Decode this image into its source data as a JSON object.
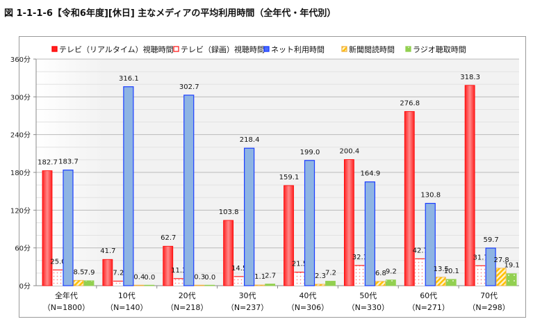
{
  "title": "図 1-1-1-6【令和6年度][休日] 主なメディアの平均利用時間（全年代・年代別）",
  "chart_data": {
    "type": "bar",
    "title": "図 1-1-1-6【令和6年度][休日] 主なメディアの平均利用時間（全年代・年代別）",
    "ylabel": "",
    "xlabel": "",
    "ylim": [
      0,
      360
    ],
    "yticks": [
      0,
      60,
      120,
      180,
      240,
      300,
      360
    ],
    "ytick_labels": [
      "0分",
      "60分",
      "120分",
      "180分",
      "240分",
      "300分",
      "360分"
    ],
    "grid": true,
    "legend_position": "top",
    "categories": [
      "全年代",
      "10代",
      "20代",
      "30代",
      "40代",
      "50代",
      "60代",
      "70代"
    ],
    "category_sublabels": [
      "（N=1800）",
      "（N=140）",
      "（N=218）",
      "（N=237）",
      "（N=306）",
      "（N=330）",
      "（N=271）",
      "（N=298）"
    ],
    "series": [
      {
        "name": "テレビ（リアルタイム）視聴時間",
        "color": "#ff3b3b",
        "values": [
          182.7,
          41.7,
          62.7,
          103.8,
          159.1,
          200.4,
          276.8,
          318.3
        ]
      },
      {
        "name": "テレビ（録画）視聴時間",
        "color": "#ff4040",
        "values": [
          25.0,
          7.2,
          11.3,
          14.5,
          21.5,
          32.1,
          42.7,
          31.7
        ]
      },
      {
        "name": "ネット利用時間",
        "color": "#8eb4e3",
        "values": [
          183.7,
          316.1,
          302.7,
          218.4,
          199.0,
          164.9,
          130.8,
          59.7
        ]
      },
      {
        "name": "新聞閲読時間",
        "color": "#ffc000",
        "values": [
          8.5,
          0.4,
          0.3,
          1.1,
          2.3,
          6.8,
          13.5,
          27.8
        ]
      },
      {
        "name": "ラジオ聴取時間",
        "color": "#92d050",
        "values": [
          7.9,
          0.0,
          0.0,
          2.7,
          7.2,
          9.2,
          10.1,
          19.1
        ]
      }
    ]
  }
}
